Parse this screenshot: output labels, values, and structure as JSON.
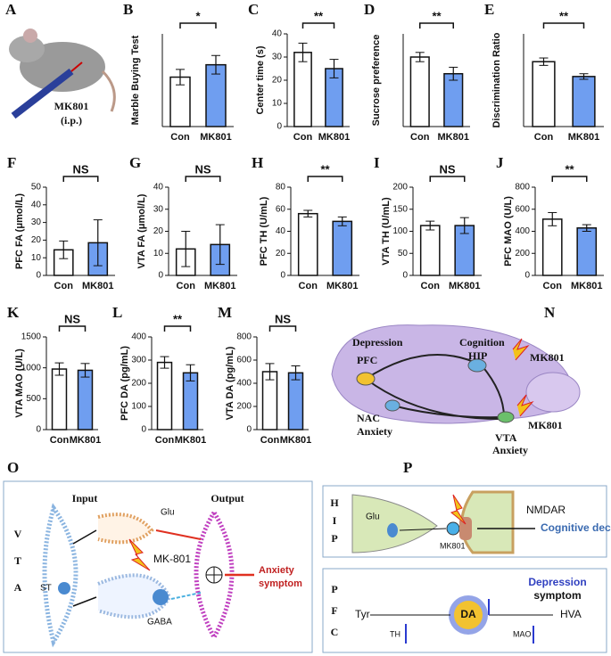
{
  "chart_data": [
    {
      "type": "bar",
      "panel": "B",
      "ylabel": "Marble Buying Test",
      "categories": [
        "Con",
        "MK801"
      ],
      "values": [
        0.32,
        0.4
      ],
      "errors": [
        0.05,
        0.06
      ],
      "ylim": [
        0,
        0.6
      ],
      "significance": "*",
      "colors": [
        "#ffffff",
        "#6f9ef0"
      ]
    },
    {
      "type": "bar",
      "panel": "C",
      "ylabel": "Center time (s)",
      "categories": [
        "Con",
        "MK801"
      ],
      "values": [
        32,
        25
      ],
      "errors": [
        4,
        4
      ],
      "ylim": [
        0,
        40
      ],
      "yticks": [
        0,
        10,
        20,
        30,
        40
      ],
      "significance": "**",
      "colors": [
        "#ffffff",
        "#6f9ef0"
      ]
    },
    {
      "type": "bar",
      "panel": "D",
      "ylabel": "Sucrose preference",
      "categories": [
        "Con",
        "MK801"
      ],
      "values": [
        0.75,
        0.57
      ],
      "errors": [
        0.05,
        0.07
      ],
      "ylim": [
        0,
        1
      ],
      "significance": "**",
      "colors": [
        "#ffffff",
        "#6f9ef0"
      ]
    },
    {
      "type": "bar",
      "panel": "E",
      "ylabel": "Discrimination Ratio",
      "categories": [
        "Con",
        "MK801"
      ],
      "values": [
        0.7,
        0.54
      ],
      "errors": [
        0.04,
        0.03
      ],
      "ylim": [
        0,
        1
      ],
      "significance": "**",
      "colors": [
        "#ffffff",
        "#6f9ef0"
      ]
    },
    {
      "type": "bar",
      "panel": "F",
      "ylabel": "PFC FA (μmol/L)",
      "categories": [
        "Con",
        "MK801"
      ],
      "values": [
        14.5,
        18.5
      ],
      "errors": [
        5,
        13
      ],
      "ylim": [
        0,
        50
      ],
      "yticks": [
        0,
        10,
        20,
        30,
        40,
        50
      ],
      "significance": "NS",
      "colors": [
        "#ffffff",
        "#6f9ef0"
      ]
    },
    {
      "type": "bar",
      "panel": "G",
      "ylabel": "VTA FA (μmol/L)",
      "categories": [
        "Con",
        "MK801"
      ],
      "values": [
        12,
        14
      ],
      "errors": [
        8,
        9
      ],
      "ylim": [
        0,
        40
      ],
      "yticks": [
        0,
        10,
        20,
        30,
        40
      ],
      "significance": "NS",
      "colors": [
        "#ffffff",
        "#6f9ef0"
      ]
    },
    {
      "type": "bar",
      "panel": "H",
      "ylabel": "PFC TH (U/mL)",
      "categories": [
        "Con",
        "MK801"
      ],
      "values": [
        56,
        49
      ],
      "errors": [
        3,
        4
      ],
      "ylim": [
        0,
        80
      ],
      "yticks": [
        0,
        20,
        40,
        60,
        80
      ],
      "significance": "**",
      "colors": [
        "#ffffff",
        "#6f9ef0"
      ]
    },
    {
      "type": "bar",
      "panel": "I",
      "ylabel": "VTA TH (U/mL)",
      "categories": [
        "Con",
        "MK801"
      ],
      "values": [
        113,
        113
      ],
      "errors": [
        10,
        18
      ],
      "ylim": [
        0,
        200
      ],
      "yticks": [
        0,
        50,
        100,
        150,
        200
      ],
      "significance": "NS",
      "colors": [
        "#ffffff",
        "#6f9ef0"
      ]
    },
    {
      "type": "bar",
      "panel": "J",
      "ylabel": "PFC MAO (U/L)",
      "categories": [
        "Con",
        "MK801"
      ],
      "values": [
        510,
        430
      ],
      "errors": [
        60,
        30
      ],
      "ylim": [
        0,
        800
      ],
      "yticks": [
        0,
        200,
        400,
        600,
        800
      ],
      "significance": "**",
      "colors": [
        "#ffffff",
        "#6f9ef0"
      ]
    },
    {
      "type": "bar",
      "panel": "K",
      "ylabel": "VTA MAO (U/L)",
      "categories": [
        "Con",
        "MK801"
      ],
      "values": [
        980,
        960
      ],
      "errors": [
        100,
        110
      ],
      "ylim": [
        0,
        1500
      ],
      "yticks": [
        0,
        500,
        1000,
        1500
      ],
      "significance": "NS",
      "colors": [
        "#ffffff",
        "#6f9ef0"
      ]
    },
    {
      "type": "bar",
      "panel": "L",
      "ylabel": "PFC DA (pg/mL)",
      "categories": [
        "Con",
        "MK801"
      ],
      "values": [
        290,
        245
      ],
      "errors": [
        25,
        35
      ],
      "ylim": [
        0,
        400
      ],
      "yticks": [
        0,
        100,
        200,
        300,
        400
      ],
      "significance": "**",
      "colors": [
        "#ffffff",
        "#6f9ef0"
      ]
    },
    {
      "type": "bar",
      "panel": "M",
      "ylabel": "VTA DA (pg/mL)",
      "categories": [
        "Con",
        "MK801"
      ],
      "values": [
        500,
        490
      ],
      "errors": [
        70,
        60
      ],
      "ylim": [
        0,
        800
      ],
      "yticks": [
        0,
        200,
        400,
        600,
        800
      ],
      "significance": "NS",
      "colors": [
        "#ffffff",
        "#6f9ef0"
      ]
    }
  ],
  "panel_A": {
    "label": "A",
    "drug": "MK801",
    "route": "(i.p.)"
  },
  "panel_N": {
    "label": "N",
    "depression": "Depression",
    "cognition": "Cognition",
    "pfc": "PFC",
    "hip": "HIP",
    "mk801_hip": "MK801",
    "nac": "NAC",
    "anxiety_nac": "Anxiety",
    "mk801_vta": "MK801",
    "vta": "VTA",
    "anxiety_vta": "Anxiety"
  },
  "panel_O": {
    "label": "O",
    "region": [
      "V",
      "T",
      "A"
    ],
    "input": "Input",
    "output": "Output",
    "glu": "Glu",
    "mk801": "MK-801",
    "gaba": "GABA",
    "st": "ST",
    "symptom": [
      "Anxiety",
      "symptom"
    ]
  },
  "panel_P": {
    "label": "P",
    "hip_letters": [
      "H",
      "I",
      "P"
    ],
    "glu": "Glu",
    "nmdar": "NMDAR",
    "mk801": "MK801",
    "outcome": "Cognitive decline",
    "pfc_letters": [
      "P",
      "F",
      "C"
    ],
    "tyr": "Tyr",
    "th": "TH",
    "da": "DA",
    "mao": "MAO",
    "hva": "HVA",
    "symptom": [
      "Depression",
      "symptom"
    ]
  }
}
